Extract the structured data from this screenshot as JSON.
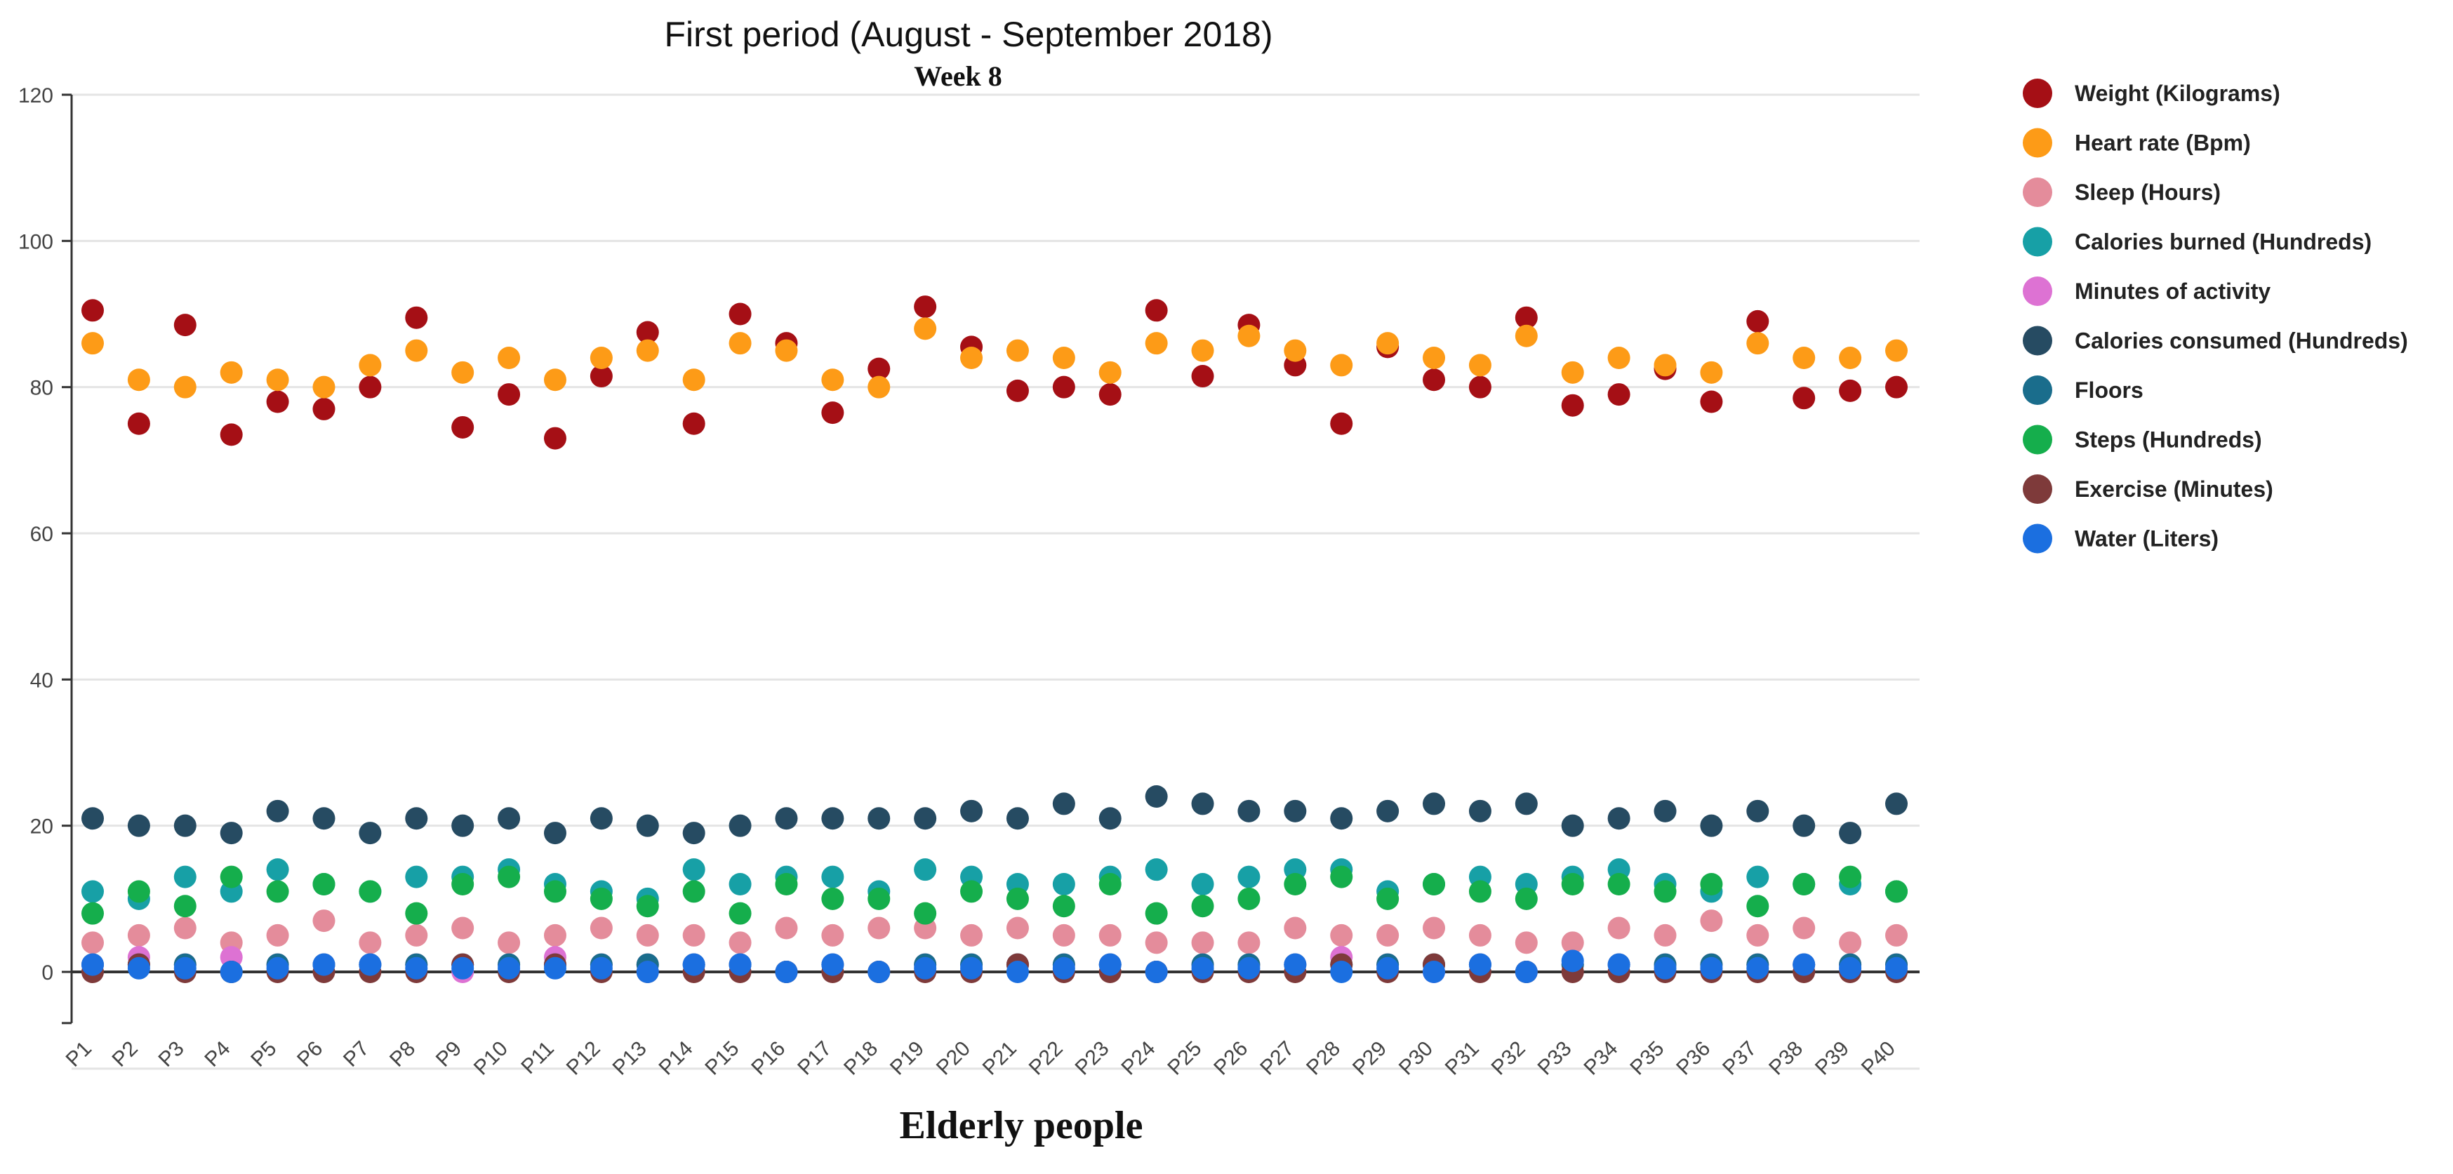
{
  "chart_data": {
    "type": "scatter",
    "title": "First period (August - September 2018)",
    "subtitle": "Week 8",
    "xlabel": "Elderly people",
    "ylabel": "",
    "ylim": [
      -7,
      120
    ],
    "yticks": [
      "0",
      "20",
      "40",
      "60",
      "80",
      "100",
      "120"
    ],
    "grid": true,
    "legend": "right",
    "categories": [
      "P1",
      "P2",
      "P3",
      "P4",
      "P5",
      "P6",
      "P7",
      "P8",
      "P9",
      "P10",
      "P11",
      "P12",
      "P13",
      "P14",
      "P15",
      "P16",
      "P17",
      "P18",
      "P19",
      "P20",
      "P21",
      "P22",
      "P23",
      "P24",
      "P25",
      "P26",
      "P27",
      "P28",
      "P29",
      "P30",
      "P31",
      "P32",
      "P33",
      "P34",
      "P35",
      "P36",
      "P37",
      "P38",
      "P39",
      "P40"
    ],
    "series": [
      {
        "name": "Weight (Kilograms)",
        "color": "#a50f15",
        "values": [
          90.5,
          75,
          88.5,
          73.5,
          78,
          77,
          80,
          89.5,
          74.5,
          79,
          73,
          81.5,
          87.5,
          75,
          90,
          86,
          76.5,
          82.5,
          91,
          85.5,
          79.5,
          80,
          79,
          90.5,
          81.5,
          88.5,
          83,
          75,
          85.5,
          81,
          80,
          89.5,
          77.5,
          79,
          82.5,
          78,
          89,
          78.5,
          79.5,
          80
        ]
      },
      {
        "name": "Heart rate (Bpm)",
        "color": "#fd9b17",
        "values": [
          86,
          81,
          80,
          82,
          81,
          80,
          83,
          85,
          82,
          84,
          81,
          84,
          85,
          81,
          86,
          85,
          81,
          80,
          88,
          84,
          85,
          84,
          82,
          86,
          85,
          87,
          85,
          83,
          86,
          84,
          83,
          87,
          82,
          84,
          83,
          82,
          86,
          84,
          84,
          85
        ]
      },
      {
        "name": "Sleep (Hours)",
        "color": "#e48c9b",
        "values": [
          4,
          5,
          6,
          4,
          5,
          7,
          4,
          5,
          6,
          4,
          5,
          6,
          5,
          5,
          4,
          6,
          5,
          6,
          6,
          5,
          6,
          5,
          5,
          4,
          4,
          4,
          6,
          5,
          5,
          6,
          5,
          4,
          4,
          6,
          5,
          7,
          5,
          6,
          4,
          5
        ]
      },
      {
        "name": "Calories burned (Hundreds)",
        "color": "#17a0a6",
        "values": [
          11,
          10,
          13,
          11,
          14,
          12,
          11,
          13,
          13,
          14,
          12,
          11,
          10,
          14,
          12,
          13,
          13,
          11,
          14,
          13,
          12,
          12,
          13,
          14,
          12,
          13,
          14,
          14,
          11,
          12,
          13,
          12,
          13,
          14,
          12,
          11,
          13,
          12,
          12,
          11
        ]
      },
      {
        "name": "Minutes of activity",
        "color": "#dd72d3",
        "values": [
          1,
          2,
          1,
          2,
          1,
          1,
          1,
          1,
          0,
          1,
          2,
          1,
          1,
          1,
          1,
          0,
          1,
          0,
          1,
          1,
          1,
          1,
          1,
          0,
          1,
          1,
          1,
          2,
          1,
          0,
          1,
          0,
          1,
          1,
          1,
          1,
          1,
          1,
          1,
          1
        ]
      },
      {
        "name": "Calories consumed (Hundreds)",
        "color": "#264b62",
        "values": [
          21,
          20,
          20,
          19,
          22,
          21,
          19,
          21,
          20,
          21,
          19,
          21,
          20,
          19,
          20,
          21,
          21,
          21,
          21,
          22,
          21,
          23,
          21,
          24,
          23,
          22,
          22,
          21,
          22,
          23,
          22,
          23,
          20,
          21,
          22,
          20,
          22,
          20,
          19,
          23
        ]
      },
      {
        "name": "Floors",
        "color": "#1a6d8c",
        "values": [
          1,
          1,
          1,
          0,
          1,
          1,
          1,
          1,
          1,
          1,
          1,
          1,
          1,
          1,
          1,
          0,
          1,
          0,
          1,
          1,
          1,
          1,
          1,
          0,
          1,
          1,
          1,
          1,
          1,
          1,
          1,
          0,
          1,
          1,
          1,
          1,
          1,
          1,
          1,
          1
        ]
      },
      {
        "name": "Steps (Hundreds)",
        "color": "#15ae4c",
        "values": [
          8,
          11,
          9,
          13,
          11,
          12,
          11,
          8,
          12,
          13,
          11,
          10,
          9,
          11,
          8,
          12,
          10,
          10,
          8,
          11,
          10,
          9,
          12,
          8,
          9,
          10,
          12,
          13,
          10,
          12,
          11,
          10,
          12,
          12,
          11,
          12,
          9,
          12,
          13,
          11
        ]
      },
      {
        "name": "Exercise (Minutes)",
        "color": "#7e3a3a",
        "values": [
          0,
          1,
          0,
          0,
          0,
          0,
          0,
          0,
          1,
          0,
          1,
          0,
          0,
          0,
          0,
          0,
          0,
          0,
          0,
          0,
          1,
          0,
          0,
          0,
          0,
          0,
          0,
          1,
          0,
          1,
          0,
          0,
          0,
          0,
          0,
          0,
          0,
          0,
          0,
          0
        ]
      },
      {
        "name": "Water (Liters)",
        "color": "#1b6fe0",
        "values": [
          1,
          0.5,
          0.5,
          0,
          0.5,
          1,
          1,
          0.5,
          0.5,
          0.5,
          0.5,
          0.5,
          0,
          1,
          1,
          0,
          1,
          0,
          0.5,
          0.5,
          0,
          0.5,
          1,
          0,
          0.5,
          0.5,
          1,
          0,
          0.5,
          0,
          1,
          0,
          1.5,
          1,
          0.5,
          0.5,
          0.5,
          1,
          0.5,
          0.5
        ]
      }
    ]
  }
}
